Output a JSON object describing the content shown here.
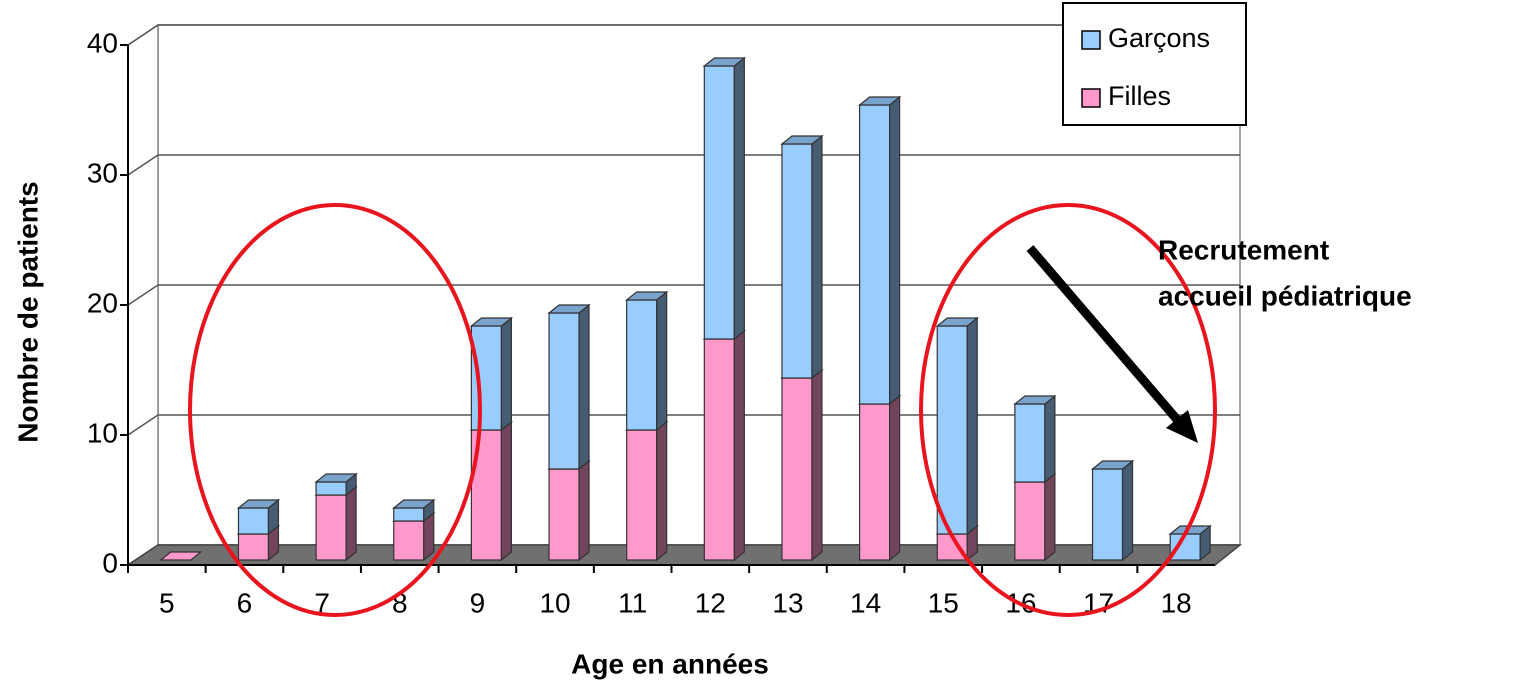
{
  "chart_data": {
    "type": "bar3d_stacked",
    "xlabel": "Age en années",
    "ylabel": "Nombre de patients",
    "categories": [
      "5",
      "6",
      "7",
      "8",
      "9",
      "10",
      "11",
      "12",
      "13",
      "14",
      "15",
      "16",
      "17",
      "18"
    ],
    "series": [
      {
        "name": "Garçons",
        "color": "#99ccff",
        "values": [
          0,
          2,
          1,
          1,
          8,
          12,
          10,
          21,
          18,
          23,
          16,
          6,
          7,
          2
        ]
      },
      {
        "name": "Filles",
        "color": "#ff99cc",
        "values": [
          0,
          2,
          5,
          3,
          10,
          7,
          10,
          17,
          14,
          12,
          2,
          6,
          0,
          0
        ]
      }
    ],
    "ylim": [
      0,
      40
    ],
    "yticks": [
      0,
      10,
      20,
      30,
      40
    ],
    "grid": true,
    "legend": "upper right",
    "annotation": [
      "Recrutement",
      "accueil pédiatrique"
    ]
  }
}
